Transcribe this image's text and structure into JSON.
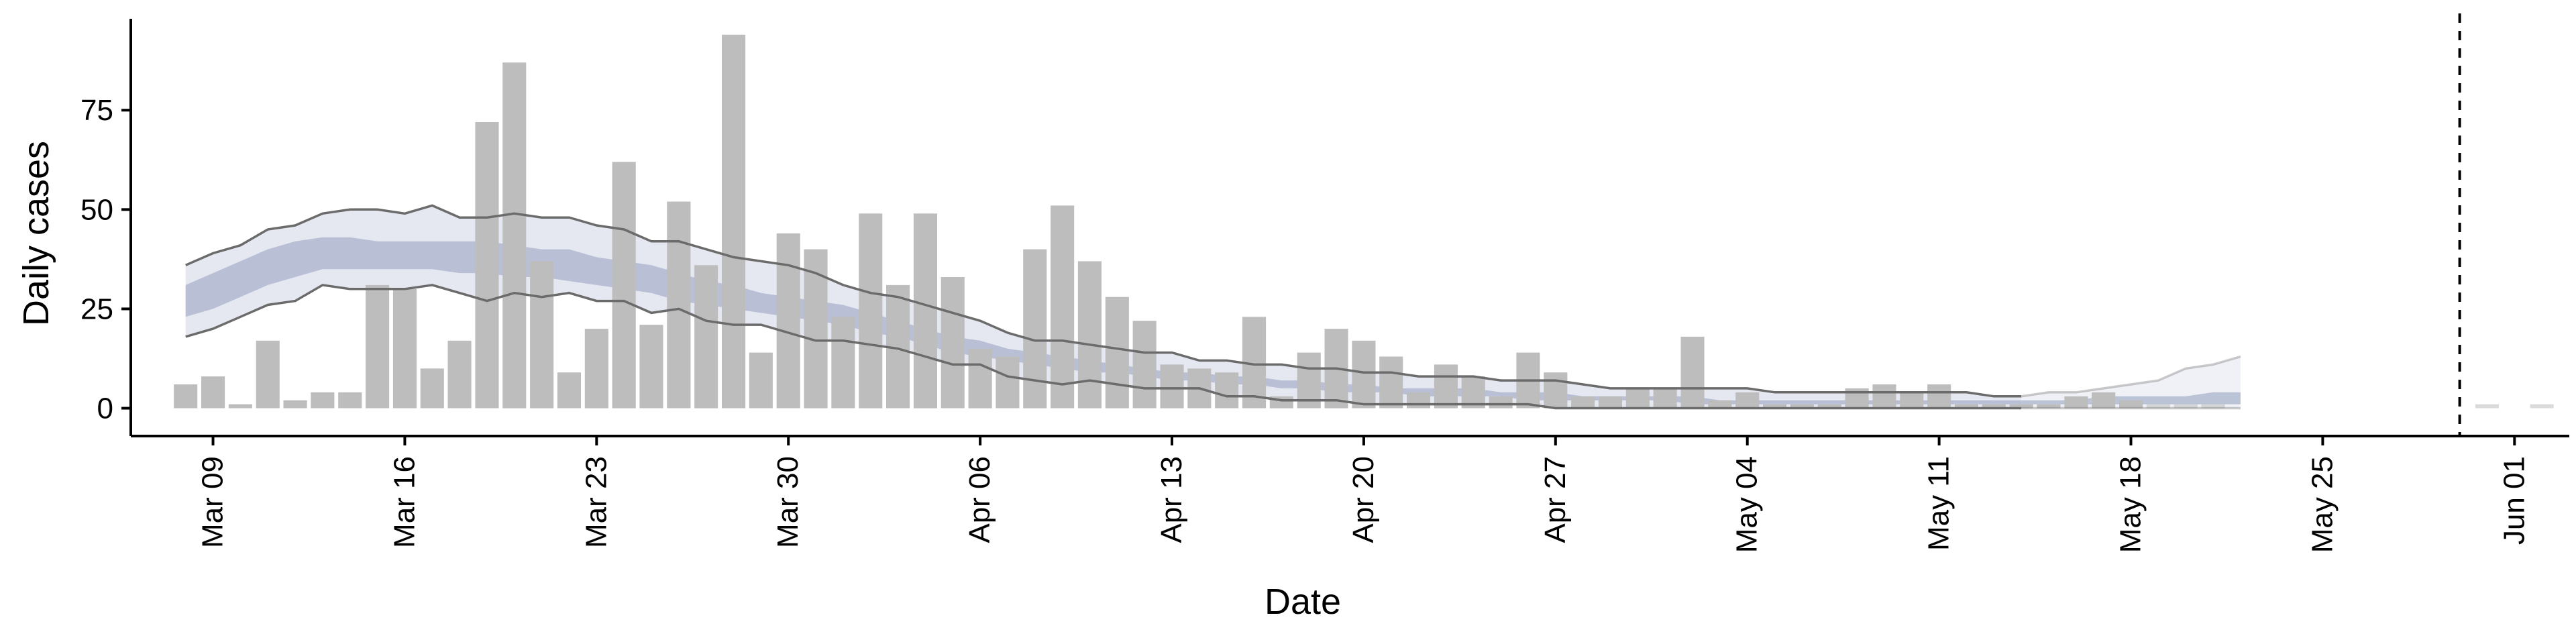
{
  "chart_data": {
    "type": "bar",
    "xlabel": "Date",
    "ylabel": "Daily cases",
    "year": 2020,
    "x_range": [
      "2020-03-06",
      "2020-06-03"
    ],
    "ylim": [
      -7,
      98
    ],
    "yticks": [
      0,
      25,
      50,
      75
    ],
    "x_ticks": [
      {
        "date": "2020-03-09",
        "label": "Mar 09"
      },
      {
        "date": "2020-03-16",
        "label": "Mar 16"
      },
      {
        "date": "2020-03-23",
        "label": "Mar 23"
      },
      {
        "date": "2020-03-30",
        "label": "Mar 30"
      },
      {
        "date": "2020-04-06",
        "label": "Apr 06"
      },
      {
        "date": "2020-04-13",
        "label": "Apr 13"
      },
      {
        "date": "2020-04-20",
        "label": "Apr 20"
      },
      {
        "date": "2020-04-27",
        "label": "Apr 27"
      },
      {
        "date": "2020-05-04",
        "label": "May 04"
      },
      {
        "date": "2020-05-11",
        "label": "May 11"
      },
      {
        "date": "2020-05-18",
        "label": "May 18"
      },
      {
        "date": "2020-05-25",
        "label": "May 25"
      },
      {
        "date": "2020-06-01",
        "label": "Jun 01"
      }
    ],
    "cases_start_date": "2020-03-08",
    "daily_cases": [
      6,
      8,
      1,
      17,
      2,
      4,
      4,
      31,
      30,
      10,
      17,
      72,
      87,
      37,
      9,
      20,
      62,
      21,
      52,
      36,
      94,
      14,
      44,
      40,
      23,
      49,
      31,
      49,
      33,
      15,
      13,
      40,
      51,
      37,
      28,
      22,
      11,
      10,
      9,
      23,
      3,
      14,
      20,
      17,
      13,
      4,
      11,
      8,
      3,
      14,
      9,
      3,
      3,
      5,
      5,
      18,
      2,
      4,
      1,
      1,
      1,
      5,
      6,
      4,
      6,
      1,
      1,
      1,
      1,
      3,
      4,
      2,
      1,
      1,
      1,
      0,
      0,
      0,
      0,
      0,
      0,
      0,
      0,
      0,
      1,
      0,
      1
    ],
    "recent_cases_start_date": "2020-05-19",
    "band_start_date": "2020-03-08",
    "band_outer_upper": [
      36,
      39,
      41,
      45,
      46,
      49,
      50,
      50,
      49,
      51,
      48,
      48,
      49,
      48,
      48,
      46,
      45,
      42,
      42,
      40,
      38,
      37,
      36,
      34,
      31,
      29,
      28,
      26,
      24,
      22,
      19,
      17,
      17,
      16,
      15,
      14,
      14,
      12,
      12,
      11,
      11,
      10,
      10,
      9,
      9,
      8,
      8,
      8,
      7,
      7,
      7,
      6,
      5,
      5,
      5,
      5,
      5,
      5,
      4,
      4,
      4,
      4,
      4,
      4,
      4,
      4,
      3,
      3,
      4,
      4,
      5,
      6,
      7,
      10,
      11,
      13
    ],
    "band_outer_lower": [
      18,
      20,
      23,
      26,
      27,
      31,
      30,
      30,
      30,
      31,
      29,
      27,
      29,
      28,
      29,
      27,
      27,
      24,
      25,
      22,
      21,
      21,
      19,
      17,
      17,
      16,
      15,
      13,
      11,
      11,
      8,
      7,
      6,
      7,
      6,
      5,
      5,
      5,
      3,
      3,
      2,
      2,
      2,
      1,
      1,
      1,
      1,
      1,
      1,
      1,
      0,
      0,
      0,
      0,
      0,
      0,
      0,
      0,
      0,
      0,
      0,
      0,
      0,
      0,
      0,
      0,
      0,
      0,
      0,
      0,
      0,
      0,
      0,
      0,
      0,
      0
    ],
    "band_inner_upper": [
      31,
      34,
      37,
      40,
      42,
      43,
      43,
      42,
      42,
      42,
      42,
      42,
      41,
      40,
      40,
      38,
      37,
      36,
      34,
      32,
      31,
      29,
      28,
      27,
      26,
      24,
      22,
      20,
      18,
      17,
      15,
      14,
      13,
      12,
      11,
      10,
      9,
      9,
      8,
      8,
      7,
      7,
      6,
      6,
      5,
      5,
      5,
      5,
      4,
      4,
      4,
      3,
      3,
      3,
      3,
      3,
      2,
      2,
      2,
      2,
      2,
      2,
      2,
      2,
      2,
      2,
      2,
      2,
      2,
      2,
      3,
      3,
      3,
      3,
      4,
      4
    ],
    "band_inner_lower": [
      23,
      25,
      28,
      31,
      33,
      35,
      35,
      35,
      35,
      35,
      34,
      34,
      33,
      33,
      32,
      31,
      30,
      29,
      27,
      26,
      25,
      24,
      23,
      22,
      21,
      19,
      18,
      16,
      14,
      13,
      12,
      11,
      10,
      9,
      9,
      8,
      7,
      7,
      6,
      6,
      5,
      5,
      4,
      4,
      4,
      3,
      3,
      3,
      3,
      2,
      2,
      2,
      2,
      2,
      2,
      1,
      1,
      1,
      1,
      1,
      1,
      1,
      1,
      1,
      1,
      1,
      1,
      1,
      1,
      1,
      1,
      1,
      1,
      1,
      1,
      1
    ],
    "faded_from_date": "2020-05-14",
    "vertical_line_date": "2020-05-30"
  }
}
